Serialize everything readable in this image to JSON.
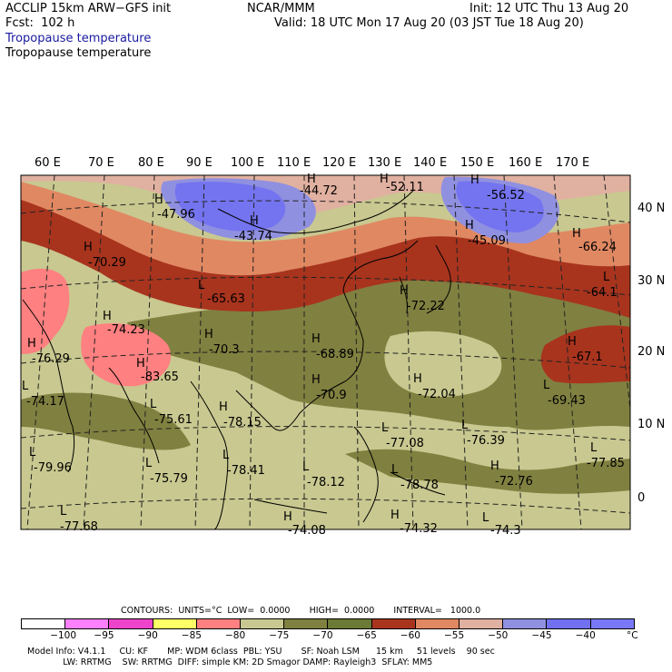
{
  "header": {
    "model": "ACCLIP 15km ARW−GFS init",
    "forecast": "Fcst:  102 h",
    "org": "NCAR/MMM",
    "init": "Init: 12 UTC Thu 13 Aug 20",
    "valid": "Valid: 18 UTC Mon 17 Aug 20 (03 JST Tue 18 Aug 20)",
    "field_shaded": "Tropopause temperature",
    "field_contour": "Tropopause temperature"
  },
  "map": {
    "longitude_labels": [
      "60 E",
      "70 E",
      "80 E",
      "90 E",
      "100 E",
      "110 E",
      "120 E",
      "130 E",
      "140 E",
      "150 E",
      "160 E",
      "170 E"
    ],
    "latitude_labels": [
      "40 N",
      "30 N",
      "20 N",
      "10 N",
      "0"
    ],
    "markers": [
      {
        "type": "H",
        "value": "-47.96"
      },
      {
        "type": "H",
        "value": "-43.74"
      },
      {
        "type": "H",
        "value": "-44.72"
      },
      {
        "type": "H",
        "value": "-52.11"
      },
      {
        "type": "H",
        "value": "-56.52"
      },
      {
        "type": "H",
        "value": "-45.09"
      },
      {
        "type": "H",
        "value": "-66.24"
      },
      {
        "type": "H",
        "value": "-70.29"
      },
      {
        "type": "L",
        "value": "-65.63"
      },
      {
        "type": "L",
        "value": "-64.1"
      },
      {
        "type": "H",
        "value": "-72.22"
      },
      {
        "type": "H",
        "value": "-74.23"
      },
      {
        "type": "H",
        "value": "-70.3"
      },
      {
        "type": "H",
        "value": "-76.29"
      },
      {
        "type": "H",
        "value": "-83.65"
      },
      {
        "type": "H",
        "value": "-68.89"
      },
      {
        "type": "H",
        "value": "-70.9"
      },
      {
        "type": "H",
        "value": "-72.04"
      },
      {
        "type": "H",
        "value": "-67.1"
      },
      {
        "type": "L",
        "value": "-69.43"
      },
      {
        "type": "L",
        "value": "-74.17"
      },
      {
        "type": "L",
        "value": "-75.61"
      },
      {
        "type": "H",
        "value": "-78.15"
      },
      {
        "type": "L",
        "value": "-77.08"
      },
      {
        "type": "L",
        "value": "-76.39"
      },
      {
        "type": "L",
        "value": "-77.85"
      },
      {
        "type": "L",
        "value": "-79.96"
      },
      {
        "type": "L",
        "value": "-75.79"
      },
      {
        "type": "L",
        "value": "-78.41"
      },
      {
        "type": "L",
        "value": "-78.12"
      },
      {
        "type": "L",
        "value": "-78.78"
      },
      {
        "type": "H",
        "value": "-72.76"
      },
      {
        "type": "L",
        "value": "-77.68"
      },
      {
        "type": "H",
        "value": "-74.08"
      },
      {
        "type": "H",
        "value": "-74.32"
      },
      {
        "type": "L",
        "value": "-74.3"
      }
    ]
  },
  "colorbar": {
    "contours_line": "CONTOURS:  UNITS=°C  LOW=  0.0000       HIGH=  0.0000       INTERVAL=   1000.0",
    "ticks": [
      "−100",
      "−95",
      "−90",
      "−85",
      "−80",
      "−75",
      "−70",
      "−65",
      "−60",
      "−55",
      "−50",
      "−45",
      "−40"
    ],
    "unit": "°C",
    "colors": [
      "#ffffff",
      "#ff80ff",
      "#ee44cc",
      "#ffff66",
      "#ff8080",
      "#c8c890",
      "#808040",
      "#6b7a36",
      "#a8341e",
      "#e08862",
      "#e0b0a0",
      "#9090e0",
      "#7070f0",
      "#7878f8"
    ]
  },
  "footer": {
    "line1": "Model Info: V4.1.1     CU: KF       MP: WDM 6class  PBL: YSU       SF: Noah LSM      15 km     51 levels    90 sec",
    "line2": "             LW: RRTMG    SW: RRTMG  DIFF: simple KM: 2D Smagor DAMP: Rayleigh3  SFLAY: MM5"
  }
}
